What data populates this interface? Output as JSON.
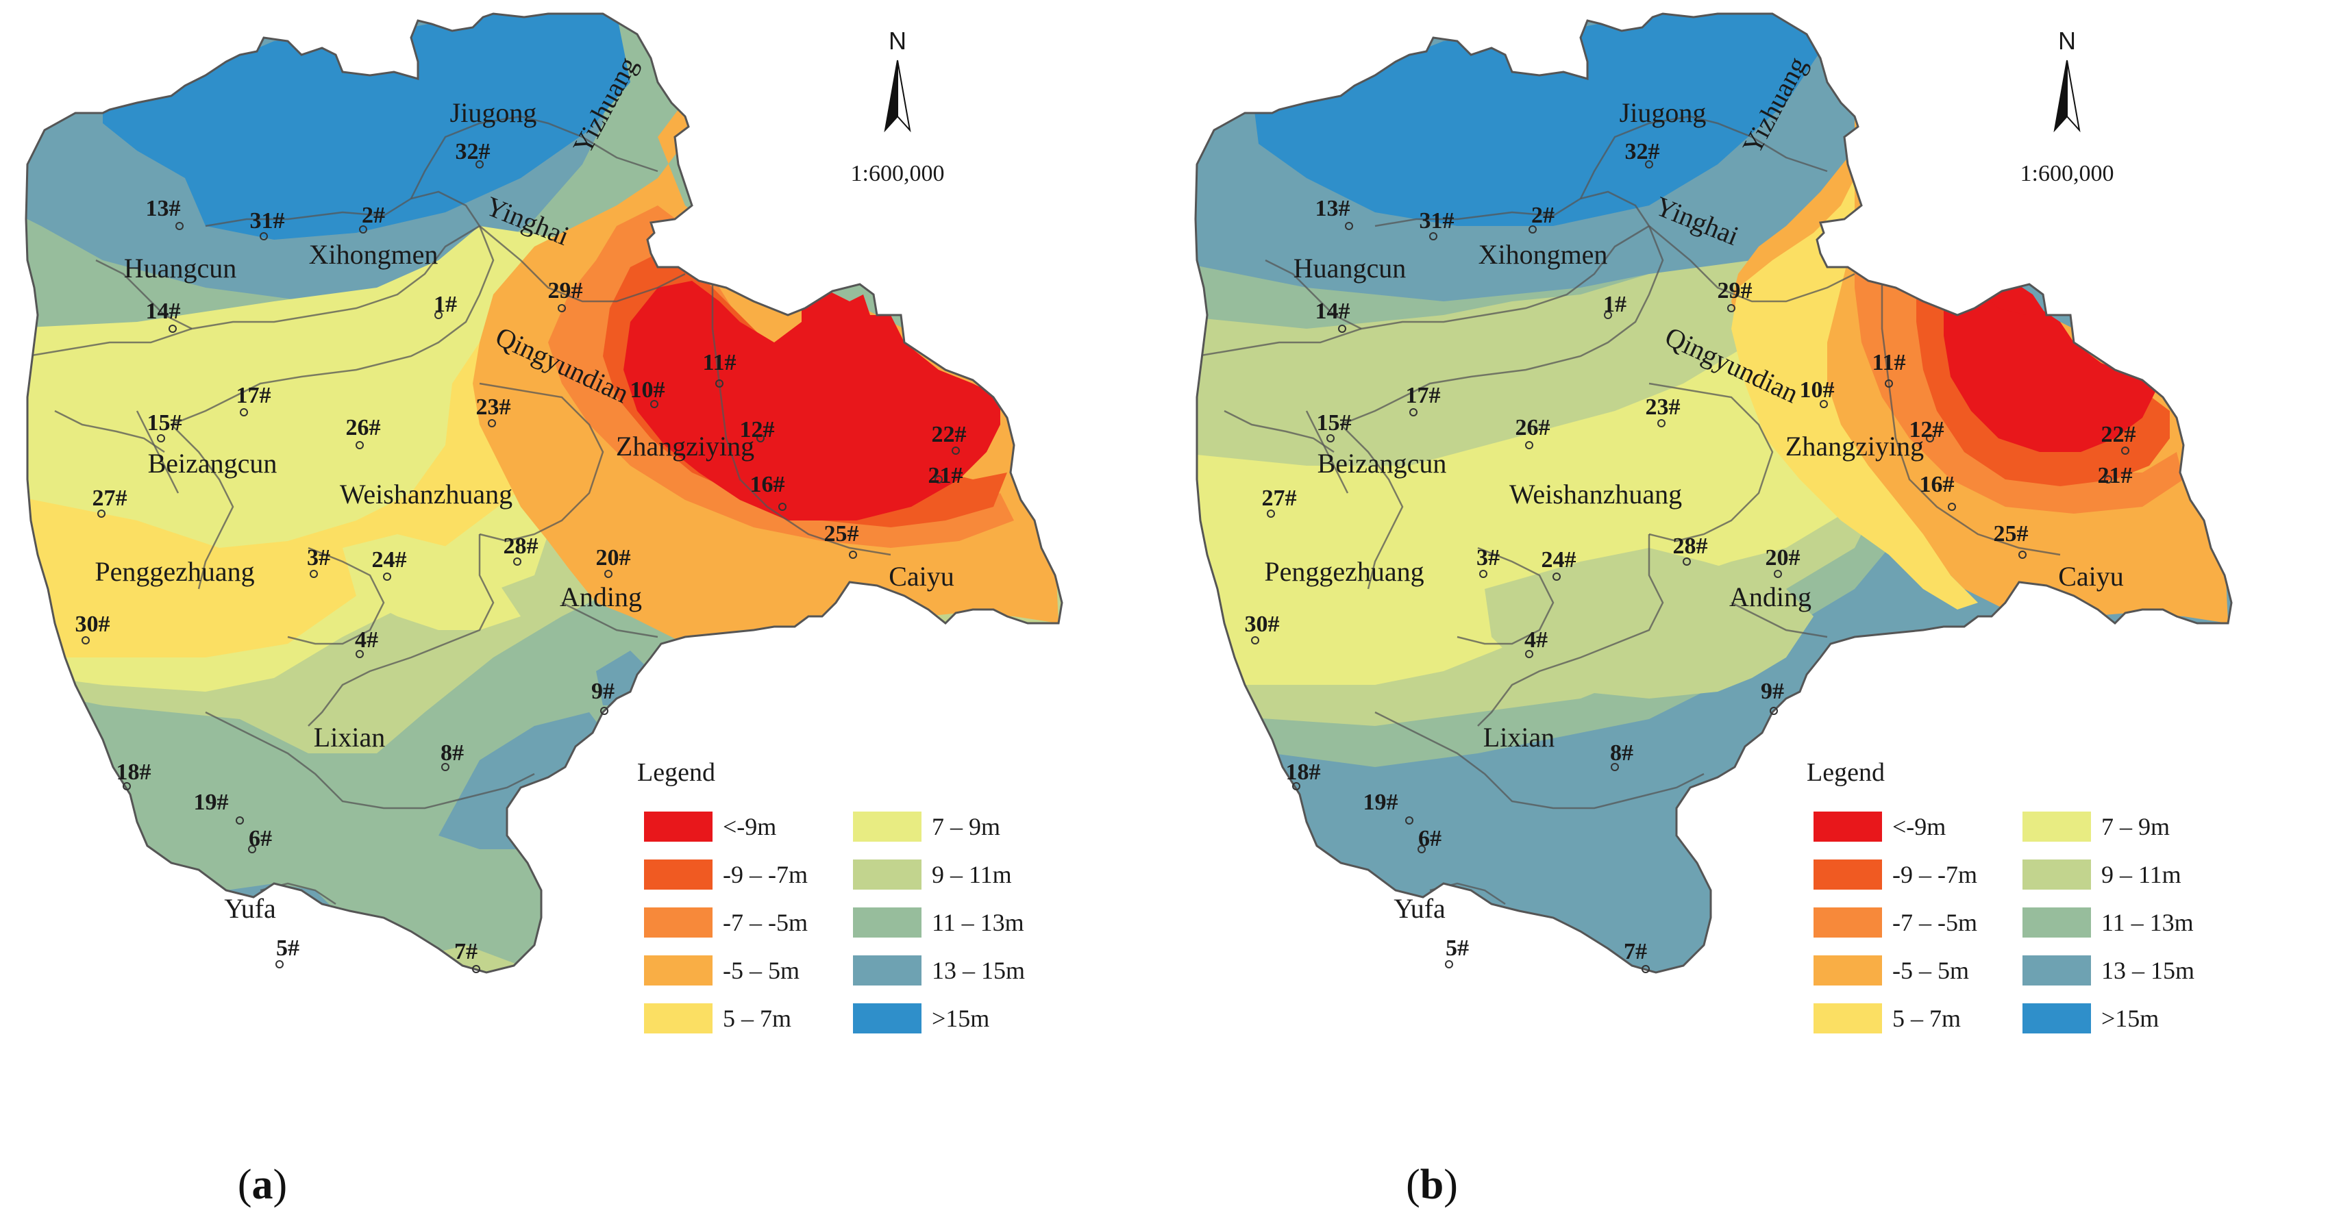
{
  "colors": {
    "lt_neg9": "#e8171b",
    "neg9_neg7": "#f05a22",
    "neg7_neg5": "#f7893a",
    "neg5_5": "#f9ae45",
    "p5_7": "#fbdf63",
    "p7_9": "#e8ec82",
    "p9_11": "#c2d48e",
    "p11_13": "#97bd9c",
    "p13_15": "#6ea2b2",
    "gt15": "#2f8fca",
    "boundary": "#555555",
    "text": "#1a1a1a"
  },
  "legend": {
    "title": "Legend",
    "items": [
      {
        "label": "<-9m",
        "color_key": "lt_neg9"
      },
      {
        "label": "-9 – -7m",
        "color_key": "neg9_neg7"
      },
      {
        "label": "-7 – -5m",
        "color_key": "neg7_neg5"
      },
      {
        "label": "-5 – 5m",
        "color_key": "neg5_5"
      },
      {
        "label": "5 – 7m",
        "color_key": "p5_7"
      },
      {
        "label": "7 – 9m",
        "color_key": "p7_9"
      },
      {
        "label": "9 – 11m",
        "color_key": "p9_11"
      },
      {
        "label": "11 – 13m",
        "color_key": "p11_13"
      },
      {
        "label": "13 – 15m",
        "color_key": "p13_15"
      },
      {
        "label": ">15m",
        "color_key": "gt15"
      }
    ]
  },
  "north_arrow": {
    "label": "N",
    "icon": "north-arrow-icon"
  },
  "scale": {
    "text": "1:600,000"
  },
  "regions": [
    "Jiugong",
    "Yizhuang",
    "Yinghai",
    "Huangcun",
    "Xihongmen",
    "Qingyundian",
    "Zhangziying",
    "Beizangcun",
    "Weishanzhuang",
    "Penggezhuang",
    "Anding",
    "Caiyu",
    "Lixian",
    "Yufa"
  ],
  "stations": [
    "1#",
    "2#",
    "3#",
    "4#",
    "5#",
    "6#",
    "7#",
    "8#",
    "9#",
    "10#",
    "11#",
    "12#",
    "13#",
    "14#",
    "15#",
    "16#",
    "17#",
    "18#",
    "19#",
    "20#",
    "21#",
    "22#",
    "23#",
    "24#",
    "25#",
    "26#",
    "27#",
    "28#",
    "29#",
    "30#",
    "31#",
    "32#"
  ],
  "panels": [
    {
      "id": "a",
      "caption_letter": "a",
      "caption_open": "(",
      "caption_close": ")"
    },
    {
      "id": "b",
      "caption_letter": "b",
      "caption_open": "(",
      "caption_close": ")"
    }
  ]
}
